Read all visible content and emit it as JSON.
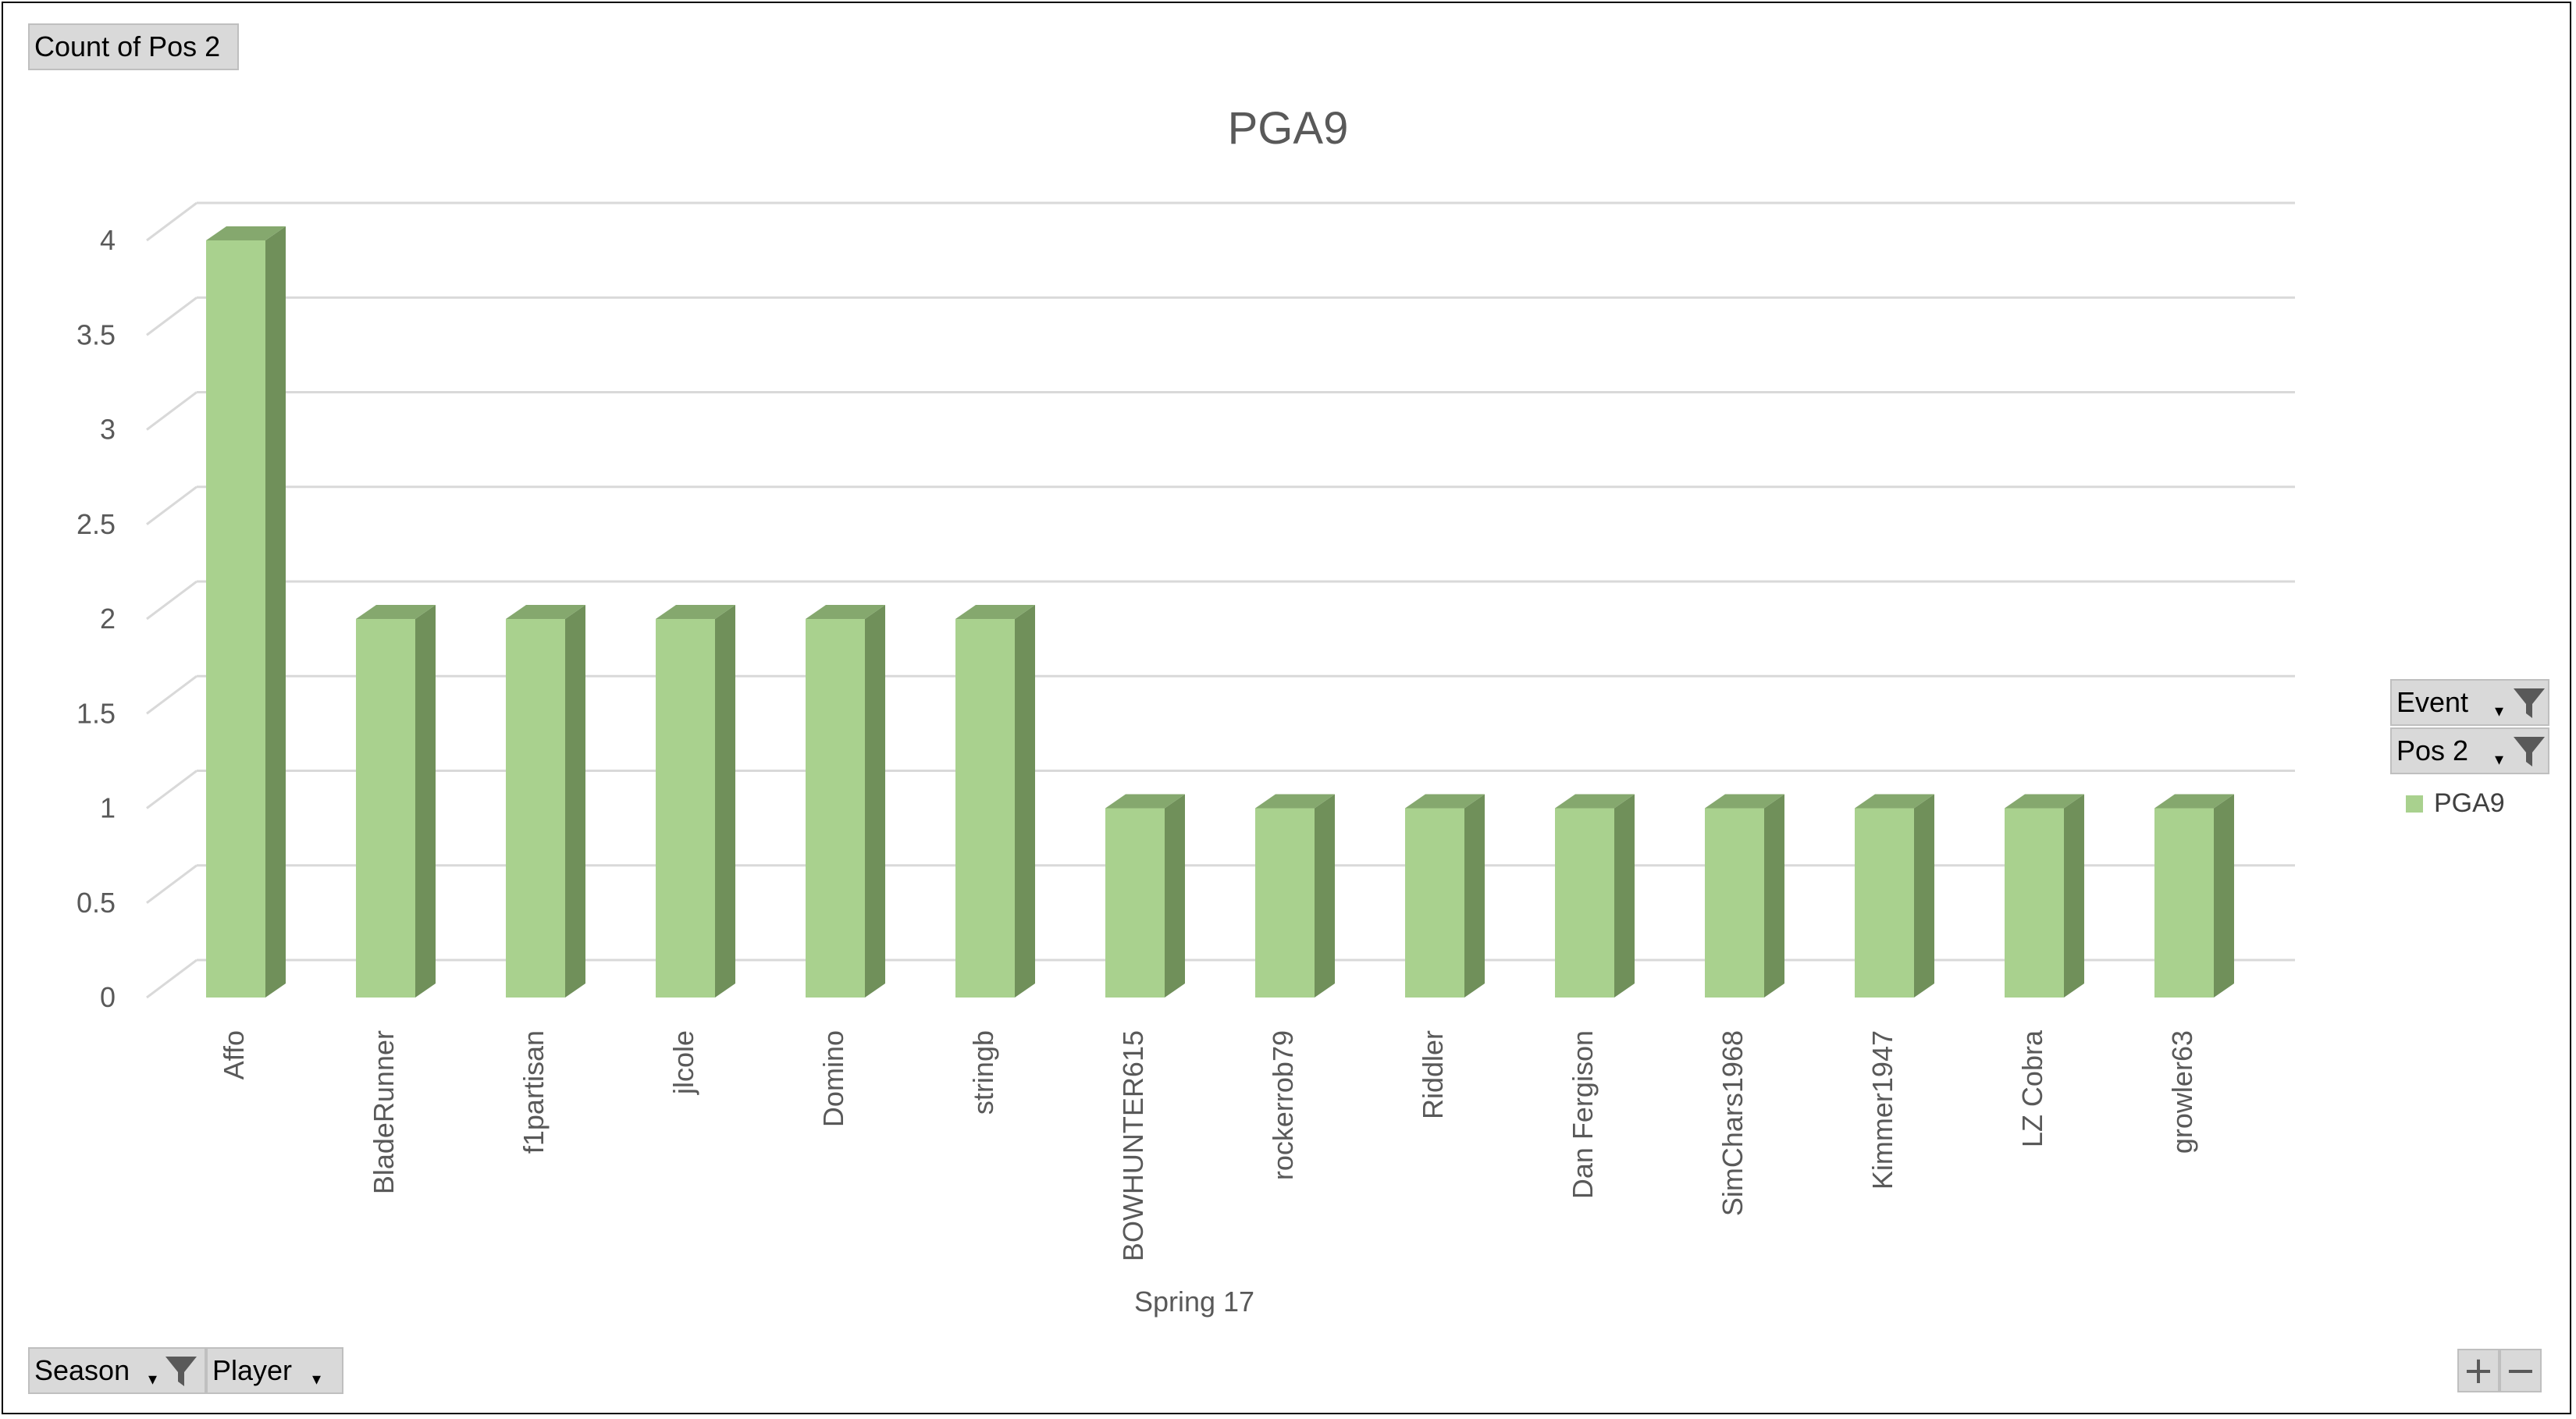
{
  "value_field": {
    "label": "Count of Pos 2"
  },
  "filters": {
    "event": {
      "label": "Event"
    },
    "pos2": {
      "label": "Pos 2"
    }
  },
  "axis_fields": {
    "season": {
      "label": "Season"
    },
    "player": {
      "label": "Player"
    }
  },
  "zoom": {
    "plus": "+",
    "minus": "−"
  },
  "colors": {
    "bar_front": "#a9d18e",
    "bar_side": "#70905a",
    "bar_top": "#85a86e",
    "grid": "#d9d9d9",
    "text": "#595959"
  },
  "chart_data": {
    "type": "bar",
    "title": "PGA9",
    "xlabel": "Spring 17",
    "ylabel": "",
    "categories": [
      "Affo",
      "BladeRunner",
      "f1partisan",
      "jlcole",
      "Domino",
      "stringb",
      "BOWHUNTER615",
      "rockerrob79",
      "Riddler",
      "Dan Fergison",
      "SimChars1968",
      "Kimmer1947",
      "LZ Cobra",
      "growler63"
    ],
    "series": [
      {
        "name": "PGA9",
        "values": [
          4,
          2,
          2,
          2,
          2,
          2,
          1,
          1,
          1,
          1,
          1,
          1,
          1,
          1
        ]
      }
    ],
    "ylim": [
      0,
      4
    ],
    "yticks": [
      "0",
      "0.5",
      "1",
      "1.5",
      "2",
      "2.5",
      "3",
      "3.5",
      "4"
    ],
    "grid": true,
    "legend_position": "right"
  }
}
